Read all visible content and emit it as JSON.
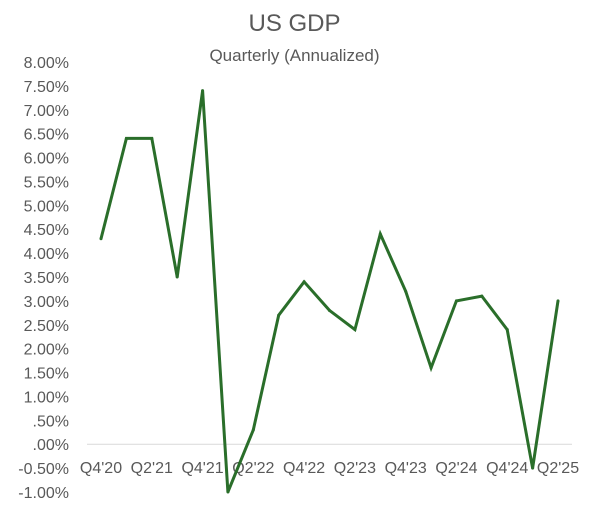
{
  "colors": {
    "line": "#2a6e2a",
    "axis": "#d9d9d9",
    "text": "#595959"
  },
  "chart_data": {
    "type": "line",
    "title": "US GDP",
    "subtitle": "Quarterly (Annualized)",
    "xlabel": "",
    "ylabel": "",
    "ylim": [
      -1.0,
      8.0
    ],
    "grid": false,
    "legend": "none",
    "y_ticks": [
      8.0,
      7.5,
      7.0,
      6.5,
      6.0,
      5.5,
      5.0,
      4.5,
      4.0,
      3.5,
      3.0,
      2.5,
      2.0,
      1.5,
      1.0,
      0.5,
      0.0,
      -0.5,
      -1.0
    ],
    "y_tick_labels": [
      "8.00%",
      "7.50%",
      "7.00%",
      "6.50%",
      "6.00%",
      "5.50%",
      "5.00%",
      "4.50%",
      "4.00%",
      "3.50%",
      "3.00%",
      "2.50%",
      "2.00%",
      "1.50%",
      "1.00%",
      ".50%",
      ".00%",
      "-0.50%",
      "-1.00%"
    ],
    "categories": [
      "Q4'20",
      "Q1'21",
      "Q2'21",
      "Q3'21",
      "Q4'21",
      "Q1'22",
      "Q2'22",
      "Q3'22",
      "Q4'22",
      "Q1'23",
      "Q2'23",
      "Q3'23",
      "Q4'23",
      "Q1'24",
      "Q2'24",
      "Q3'24",
      "Q4'24",
      "Q1'25",
      "Q2'25"
    ],
    "x_tick_labels": [
      "Q4'20",
      "",
      "Q2'21",
      "",
      "Q4'21",
      "",
      "Q2'22",
      "",
      "Q4'22",
      "",
      "Q2'23",
      "",
      "Q4'23",
      "",
      "Q2'24",
      "",
      "Q4'24",
      "",
      "Q2'25"
    ],
    "series": [
      {
        "values": [
          4.3,
          6.4,
          6.4,
          3.5,
          7.4,
          -1.0,
          0.3,
          2.7,
          3.4,
          2.8,
          2.4,
          4.4,
          3.2,
          1.6,
          3.0,
          3.1,
          2.4,
          -0.5,
          3.0
        ]
      }
    ]
  }
}
